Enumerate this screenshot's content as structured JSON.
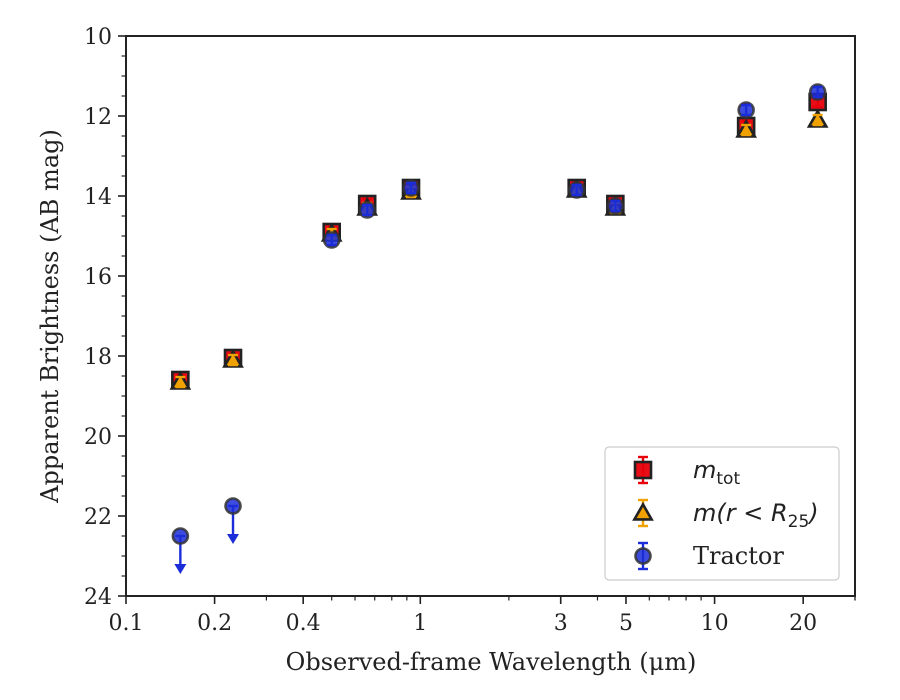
{
  "chart_data": {
    "type": "scatter",
    "title": "",
    "xlabel": "Observed-frame Wavelength (μm)",
    "ylabel": "Apparent Brightness (AB mag)",
    "xscale": "log",
    "xlim": [
      0.1,
      30
    ],
    "ylim": [
      24,
      10
    ],
    "y_inverted": true,
    "xticks": [
      {
        "value": 0.1,
        "label": "0.1"
      },
      {
        "value": 0.2,
        "label": "0.2"
      },
      {
        "value": 0.4,
        "label": "0.4"
      },
      {
        "value": 1,
        "label": "1"
      },
      {
        "value": 3,
        "label": "3"
      },
      {
        "value": 5,
        "label": "5"
      },
      {
        "value": 10,
        "label": "10"
      },
      {
        "value": 20,
        "label": "20"
      }
    ],
    "yticks": [
      {
        "value": 10,
        "label": "10"
      },
      {
        "value": 12,
        "label": "12"
      },
      {
        "value": 14,
        "label": "14"
      },
      {
        "value": 16,
        "label": "16"
      },
      {
        "value": 18,
        "label": "18"
      },
      {
        "value": 20,
        "label": "20"
      },
      {
        "value": 22,
        "label": "22"
      },
      {
        "value": 24,
        "label": "24"
      }
    ],
    "grid": false,
    "legend_position": "bottom-right",
    "series": [
      {
        "name": "m_tot",
        "legend_main": "m",
        "legend_sub": "tot",
        "marker": "square",
        "color": "#e8000b",
        "errorbar_color": "#e8000b",
        "points": [
          {
            "x": 0.153,
            "y": 18.6
          },
          {
            "x": 0.231,
            "y": 18.05
          },
          {
            "x": 0.5,
            "y": 14.9
          },
          {
            "x": 0.66,
            "y": 14.2
          },
          {
            "x": 0.93,
            "y": 13.8
          },
          {
            "x": 3.4,
            "y": 13.8
          },
          {
            "x": 4.6,
            "y": 14.2
          },
          {
            "x": 12.8,
            "y": 12.25
          },
          {
            "x": 22.4,
            "y": 11.65
          }
        ]
      },
      {
        "name": "m(r < R25)",
        "legend_main": "m(r < R",
        "legend_sub": "25",
        "legend_tail": ")",
        "marker": "triangle",
        "color": "#f1a100",
        "errorbar_color": "#f1a100",
        "points": [
          {
            "x": 0.153,
            "y": 18.65
          },
          {
            "x": 0.231,
            "y": 18.1
          },
          {
            "x": 0.5,
            "y": 14.95
          },
          {
            "x": 0.66,
            "y": 14.3
          },
          {
            "x": 0.93,
            "y": 13.9
          },
          {
            "x": 3.4,
            "y": 13.85
          },
          {
            "x": 4.6,
            "y": 14.3
          },
          {
            "x": 12.8,
            "y": 12.35
          },
          {
            "x": 22.4,
            "y": 12.1
          }
        ]
      },
      {
        "name": "Tractor",
        "legend_main": "Tractor",
        "marker": "circle",
        "color": "#1b2dd8",
        "errorbar_color": "#1b2dd8",
        "points": [
          {
            "x": 0.153,
            "y": 22.5,
            "upper_limit": true
          },
          {
            "x": 0.231,
            "y": 21.75,
            "upper_limit": true
          },
          {
            "x": 0.5,
            "y": 15.1
          },
          {
            "x": 0.66,
            "y": 14.35
          },
          {
            "x": 0.93,
            "y": 13.8
          },
          {
            "x": 3.4,
            "y": 13.85
          },
          {
            "x": 4.6,
            "y": 14.25
          },
          {
            "x": 12.8,
            "y": 11.85
          },
          {
            "x": 22.4,
            "y": 11.4
          }
        ]
      }
    ]
  }
}
